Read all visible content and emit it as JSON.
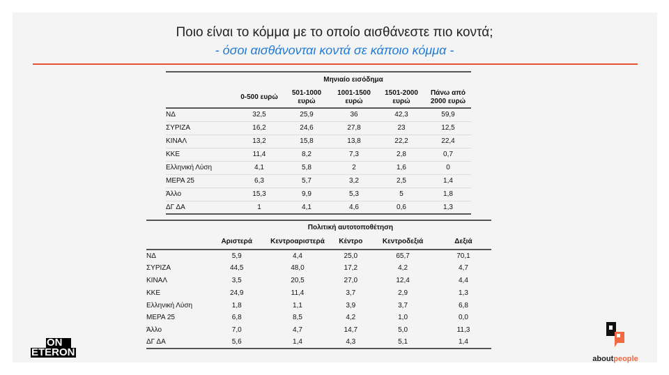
{
  "title": "Ποιο είναι το κόμμα με το οποίο αισθάνεστε πιο κοντά;",
  "subtitle": "- όσοι αισθάνονται κοντά σε κάποιο κόμμα -",
  "colors": {
    "accent_line": "#e2512f",
    "subtitle": "#1f7bd6",
    "logo_orange": "#f06a43"
  },
  "table1": {
    "group_header": "Μηνιαίο εισόδημα",
    "columns": [
      "0-500 ευρώ",
      "501-1000 ευρώ",
      "1001-1500 ευρώ",
      "1501-2000 ευρώ",
      "Πάνω από 2000 ευρώ"
    ],
    "rows": [
      {
        "label": "ΝΔ",
        "values": [
          "32,5",
          "25,9",
          "36",
          "42,3",
          "59,9"
        ]
      },
      {
        "label": "ΣΥΡΙΖΑ",
        "values": [
          "16,2",
          "24,6",
          "27,8",
          "23",
          "12,5"
        ]
      },
      {
        "label": "ΚΙΝΑΛ",
        "values": [
          "13,2",
          "15,8",
          "13,8",
          "22,2",
          "22,4"
        ]
      },
      {
        "label": "ΚΚΕ",
        "values": [
          "11,4",
          "8,2",
          "7,3",
          "2,8",
          "0,7"
        ]
      },
      {
        "label": "Ελληνική Λύση",
        "values": [
          "4,1",
          "5,8",
          "2",
          "1,6",
          "0"
        ]
      },
      {
        "label": "ΜΕΡΑ 25",
        "values": [
          "6,3",
          "5,7",
          "3,2",
          "2,5",
          "1,4"
        ]
      },
      {
        "label": "Άλλο",
        "values": [
          "15,3",
          "9,9",
          "5,3",
          "5",
          "1,8"
        ]
      },
      {
        "label": "ΔΓ ΔΑ",
        "values": [
          "1",
          "4,1",
          "4,6",
          "0,6",
          "1,3"
        ]
      }
    ]
  },
  "table2": {
    "group_header": "Πολιτική αυτοτοποθέτηση",
    "columns": [
      "Αριστερά",
      "Κεντροαριστερά",
      "Κέντρο",
      "Κεντροδεξιά",
      "Δεξιά"
    ],
    "rows": [
      {
        "label": "ΝΔ",
        "values": [
          "5,9",
          "4,4",
          "25,0",
          "65,7",
          "70,1"
        ]
      },
      {
        "label": "ΣΥΡΙΖΑ",
        "values": [
          "44,5",
          "48,0",
          "17,2",
          "4,2",
          "4,7"
        ]
      },
      {
        "label": "ΚΙΝΑΛ",
        "values": [
          "3,5",
          "20,5",
          "27,0",
          "12,4",
          "4,4"
        ]
      },
      {
        "label": "ΚΚΕ",
        "values": [
          "24,9",
          "11,4",
          "3,7",
          "2,9",
          "1,3"
        ]
      },
      {
        "label": "Ελληνική Λύση",
        "values": [
          "1,8",
          "1,1",
          "3,9",
          "3,7",
          "6,8"
        ]
      },
      {
        "label": "ΜΕΡΑ 25",
        "values": [
          "6,8",
          "8,5",
          "4,2",
          "1,0",
          "0,0"
        ]
      },
      {
        "label": "Άλλο",
        "values": [
          "7,0",
          "4,7",
          "14,7",
          "5,0",
          "11,3"
        ]
      },
      {
        "label": "ΔΓ ΔΑ",
        "values": [
          "5,6",
          "1,4",
          "4,3",
          "5,1",
          "1,4"
        ]
      }
    ]
  },
  "logos": {
    "left": "ON ETERON",
    "right_a": "about",
    "right_b": "people"
  }
}
